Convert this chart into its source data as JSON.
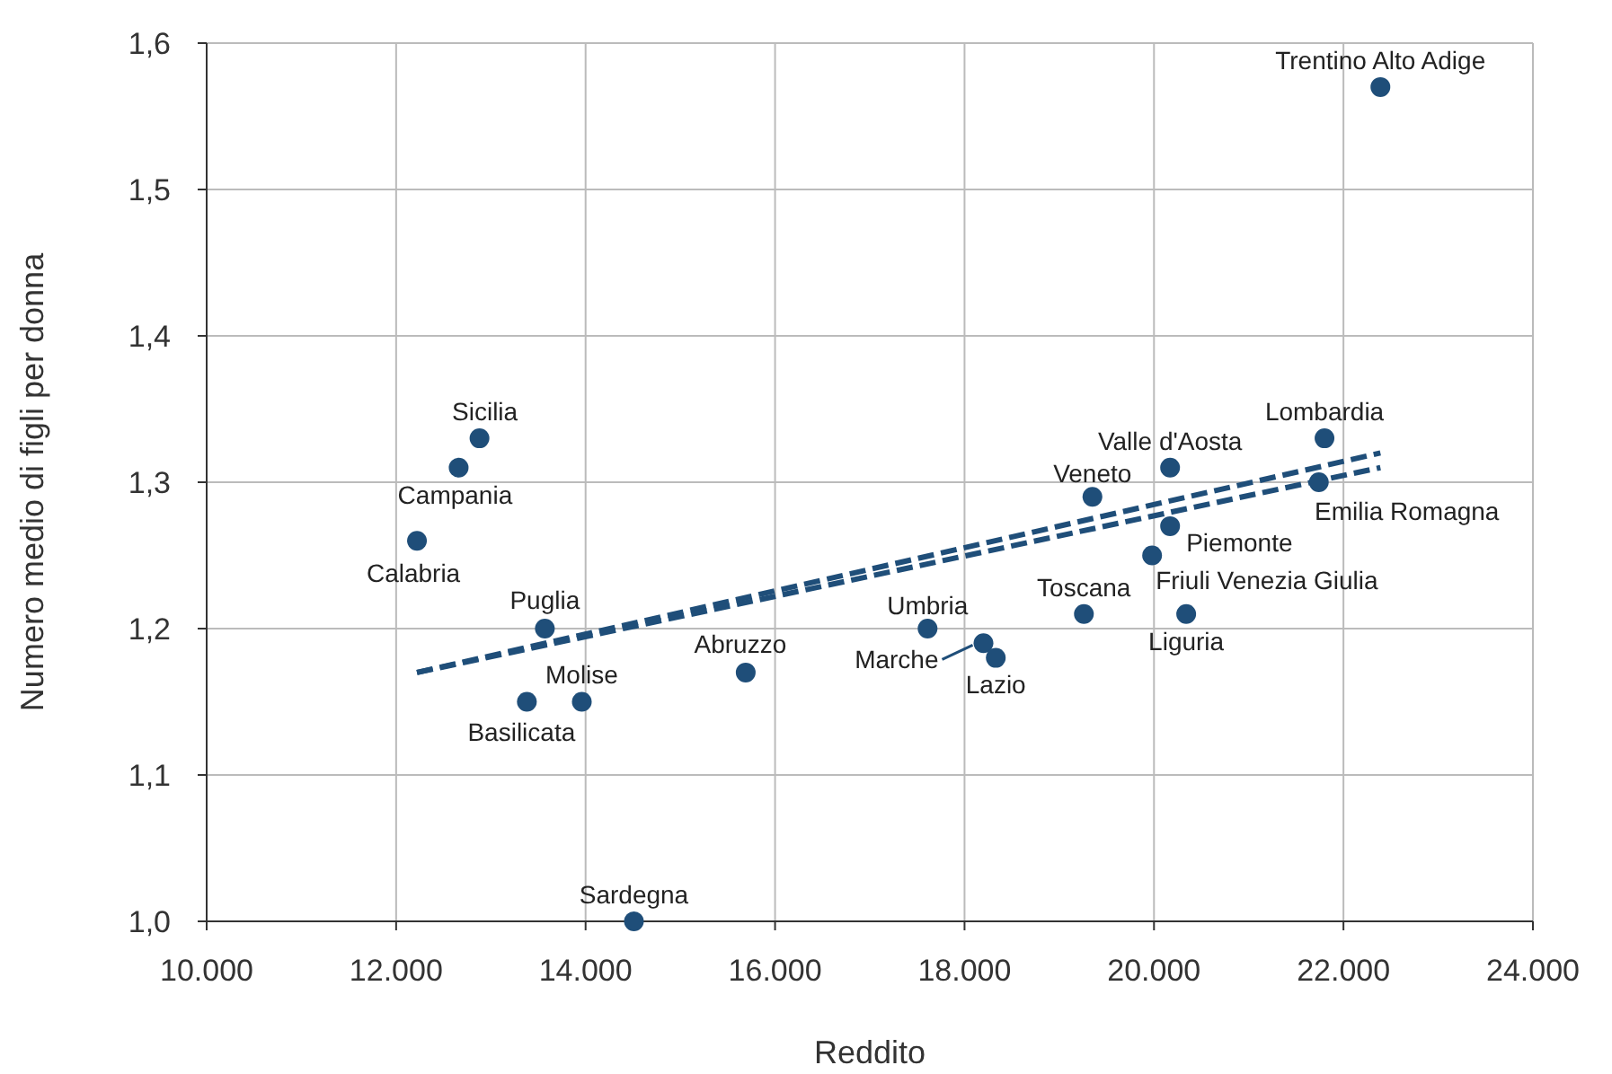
{
  "chart_data": {
    "type": "scatter",
    "xlabel": "Reddito",
    "ylabel": "Numero medio di figli per donna",
    "xlim": [
      10000,
      24000
    ],
    "ylim": [
      1.0,
      1.6
    ],
    "xticks": [
      {
        "value": 10000,
        "label": "10.000"
      },
      {
        "value": 12000,
        "label": "12.000"
      },
      {
        "value": 14000,
        "label": "14.000"
      },
      {
        "value": 16000,
        "label": "16.000"
      },
      {
        "value": 18000,
        "label": "18.000"
      },
      {
        "value": 20000,
        "label": "20.000"
      },
      {
        "value": 22000,
        "label": "22.000"
      },
      {
        "value": 24000,
        "label": "24.000"
      }
    ],
    "yticks": [
      {
        "value": 1.0,
        "label": "1,0"
      },
      {
        "value": 1.1,
        "label": "1,1"
      },
      {
        "value": 1.2,
        "label": "1,2"
      },
      {
        "value": 1.3,
        "label": "1,3"
      },
      {
        "value": 1.4,
        "label": "1,4"
      },
      {
        "value": 1.5,
        "label": "1,5"
      },
      {
        "value": 1.6,
        "label": "1,6"
      }
    ],
    "grid": true,
    "series": [
      {
        "color": "#1f4e79",
        "marker": "circle",
        "x": [
          22390,
          21800,
          20170,
          21740,
          19350,
          20170,
          19980,
          20340,
          19260,
          17610,
          18200,
          18330,
          15690,
          14510,
          13960,
          13380,
          13570,
          12220,
          12660,
          12880
        ],
        "values": [
          1.57,
          1.33,
          1.31,
          1.3,
          1.29,
          1.27,
          1.25,
          1.21,
          1.21,
          1.2,
          1.19,
          1.18,
          1.17,
          1.0,
          1.15,
          1.15,
          1.2,
          1.26,
          1.31,
          1.33
        ]
      },
      {
        "type": "line",
        "color": "#1f4e79",
        "line_style": "dashed",
        "x": [
          12220,
          22390
        ],
        "values": [
          1.17,
          1.32
        ]
      },
      {
        "type": "line",
        "color": "#1f4e79",
        "line_style": "dashed",
        "x": [
          12220,
          22390
        ],
        "values": [
          1.17,
          1.31
        ]
      }
    ],
    "annotations": [
      {
        "text": "Trentino Alto Adige",
        "x": 22390,
        "y": 1.57
      },
      {
        "text": "Lombardia",
        "x": 21800,
        "y": 1.33
      },
      {
        "text": "Valle d'Aosta",
        "x": 20170,
        "y": 1.31
      },
      {
        "text": "Emilia Romagna",
        "x": 21740,
        "y": 1.3
      },
      {
        "text": "Veneto",
        "x": 19350,
        "y": 1.29
      },
      {
        "text": "Piemonte",
        "x": 20170,
        "y": 1.27
      },
      {
        "text": "Friuli Venezia Giulia",
        "x": 19980,
        "y": 1.25
      },
      {
        "text": "Liguria",
        "x": 20340,
        "y": 1.21
      },
      {
        "text": "Toscana",
        "x": 19260,
        "y": 1.21
      },
      {
        "text": "Umbria",
        "x": 17610,
        "y": 1.2
      },
      {
        "text": "Marche",
        "x": 18200,
        "y": 1.19
      },
      {
        "text": "Lazio",
        "x": 18330,
        "y": 1.18
      },
      {
        "text": "Abruzzo",
        "x": 15690,
        "y": 1.17
      },
      {
        "text": "Sardegna",
        "x": 14510,
        "y": 1.0
      },
      {
        "text": "Molise",
        "x": 13960,
        "y": 1.15
      },
      {
        "text": "Basilicata",
        "x": 13380,
        "y": 1.15
      },
      {
        "text": "Puglia",
        "x": 13570,
        "y": 1.2
      },
      {
        "text": "Calabria",
        "x": 12220,
        "y": 1.26
      },
      {
        "text": "Campania",
        "x": 12660,
        "y": 1.31
      },
      {
        "text": "Sicilia",
        "x": 12880,
        "y": 1.33
      }
    ]
  }
}
